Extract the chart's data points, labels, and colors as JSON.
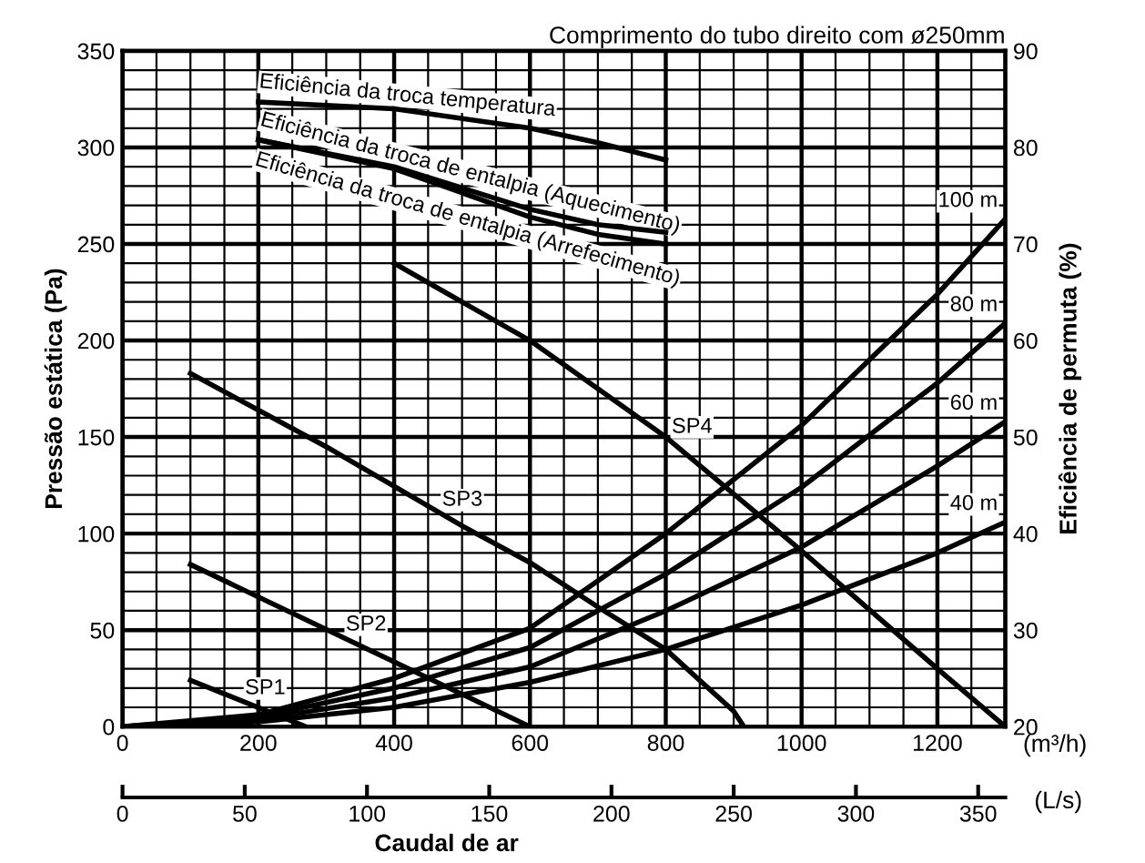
{
  "chart_data": {
    "type": "line",
    "title": "Comprimento do tubo direito com ø250mm",
    "xlabel": "Caudal de ar",
    "ylabel": "Pressão estática (Pa)",
    "y2label": "Eficiência de permuta (%)",
    "x2label": "(L/s)",
    "annotations": [
      "(m³/h)"
    ],
    "xlim": [
      0,
      1300
    ],
    "xticks": [
      0,
      200,
      400,
      600,
      800,
      1000,
      1200
    ],
    "ylim": [
      0,
      350
    ],
    "yticks": [
      0,
      50,
      100,
      150,
      200,
      250,
      300,
      350
    ],
    "y2lim": [
      20,
      90
    ],
    "y2ticks": [
      20,
      30,
      40,
      50,
      60,
      70,
      80,
      90
    ],
    "x2lim": [
      0,
      361.1
    ],
    "x2ticks": [
      0,
      50,
      100,
      150,
      200,
      250,
      300,
      350
    ],
    "grid": true,
    "legend": false,
    "marker": "none",
    "line_style": "solid",
    "series": [
      {
        "name": "SP1",
        "color": "#000000",
        "x": [
          100,
          270
        ],
        "values": [
          24,
          0
        ]
      },
      {
        "name": "SP2",
        "color": "#000000",
        "x": [
          100,
          350,
          600
        ],
        "values": [
          84,
          42,
          0
        ]
      },
      {
        "name": "SP3",
        "color": "#000000",
        "x": [
          100,
          300,
          500,
          600,
          700,
          800,
          900,
          915
        ],
        "values": [
          183,
          145,
          104,
          85,
          62,
          40,
          8,
          0
        ]
      },
      {
        "name": "SP4",
        "color": "#000000",
        "x": [
          400,
          600,
          800,
          1000,
          1200,
          1300
        ],
        "values": [
          240,
          200,
          150,
          91,
          30,
          0
        ]
      },
      {
        "name": "40 m",
        "color": "#000000",
        "x": [
          0,
          200,
          400,
          600,
          800,
          1000,
          1200,
          1300
        ],
        "values": [
          0,
          2.5,
          10,
          23,
          40,
          63,
          90,
          106
        ]
      },
      {
        "name": "60 m",
        "color": "#000000",
        "x": [
          0,
          200,
          400,
          600,
          800,
          1000,
          1200,
          1300
        ],
        "values": [
          0,
          3.7,
          15,
          31,
          60,
          93,
          135,
          158
        ]
      },
      {
        "name": "80 m",
        "color": "#000000",
        "x": [
          0,
          200,
          400,
          600,
          800,
          1000,
          1200,
          1300
        ],
        "values": [
          0,
          5,
          20,
          41,
          79,
          124,
          178,
          209
        ]
      },
      {
        "name": "100 m",
        "color": "#000000",
        "x": [
          0,
          200,
          400,
          600,
          800,
          1000,
          1200,
          1300
        ],
        "values": [
          0,
          6.2,
          25,
          51,
          100,
          156,
          224,
          263
        ]
      },
      {
        "name": "Eficiência da troca temperatura",
        "color": "#000000",
        "axis": "y2",
        "x": [
          200,
          400,
          600,
          700,
          800
        ],
        "values": [
          84.7,
          84,
          82,
          80.5,
          78.7
        ]
      },
      {
        "name": "Eficiência da troca de entalpia (Aquecimento)",
        "color": "#000000",
        "axis": "y2",
        "x": [
          200,
          400,
          600,
          700,
          800
        ],
        "values": [
          80.8,
          78,
          73.6,
          72,
          71.2
        ]
      },
      {
        "name": "Eficiência da troca de entalpia (Arrefecimento)",
        "color": "#000000",
        "axis": "y2",
        "x": [
          200,
          400,
          600,
          700,
          800
        ],
        "values": [
          80.8,
          77.8,
          72.8,
          71,
          70
        ]
      }
    ]
  }
}
